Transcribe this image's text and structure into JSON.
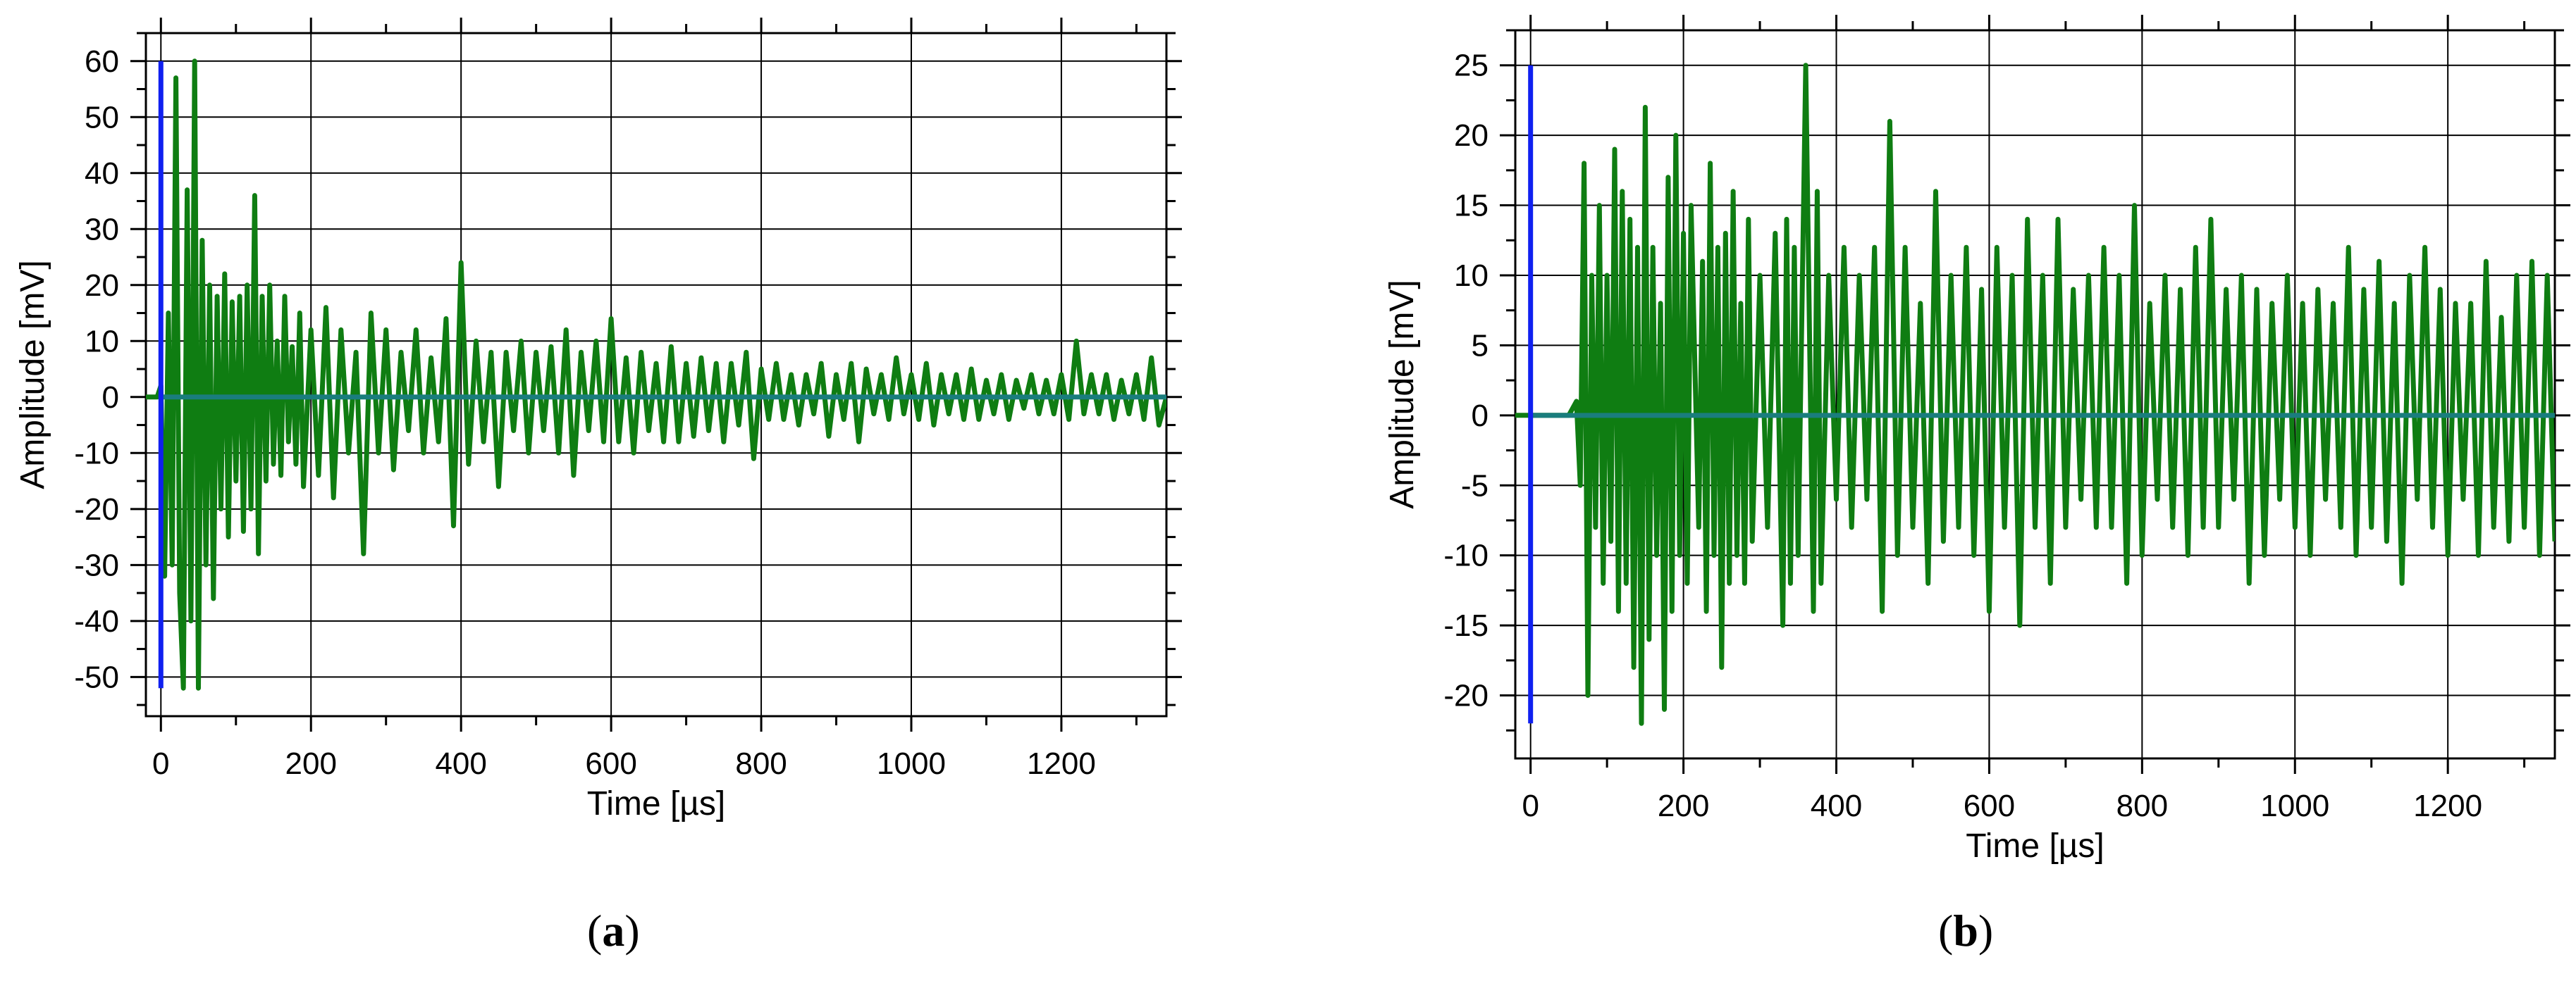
{
  "colors": {
    "signal": "#0f7d12",
    "trigger": "#1020f0",
    "baseline": "#1a7d7d",
    "grid": "#000000"
  },
  "chart_data": [
    {
      "type": "line",
      "label": "a",
      "xlabel": "Time [µs]",
      "ylabel": "Amplitude [mV]",
      "xlim": [
        -20,
        1340
      ],
      "ylim": [
        -57,
        65
      ],
      "xticks": [
        0,
        200,
        400,
        600,
        800,
        1000,
        1200
      ],
      "yticks": [
        -50,
        -40,
        -30,
        -20,
        -10,
        0,
        10,
        20,
        30,
        40,
        50,
        60
      ],
      "grid": true,
      "trigger_line": {
        "x": 0,
        "y_range": [
          -52,
          60
        ]
      },
      "baseline": {
        "y": 0,
        "x_range": [
          0,
          1340
        ]
      },
      "series": [
        {
          "x": [
            -20,
            -5,
            0,
            5,
            10,
            15,
            20,
            25,
            30,
            35,
            40,
            45,
            50,
            55,
            60,
            65,
            70,
            75,
            80,
            85,
            90,
            95,
            100,
            105,
            110,
            115,
            120,
            125,
            130,
            135,
            140,
            145,
            150,
            155,
            160,
            165,
            170,
            175,
            180,
            185,
            190,
            200,
            210,
            220,
            230,
            240,
            250,
            260,
            270,
            280,
            290,
            300,
            310,
            320,
            330,
            340,
            350,
            360,
            370,
            380,
            390,
            400,
            410,
            420,
            430,
            440,
            450,
            460,
            470,
            480,
            490,
            500,
            510,
            520,
            530,
            540,
            550,
            560,
            570,
            580,
            590,
            600,
            610,
            620,
            630,
            640,
            650,
            660,
            670,
            680,
            690,
            700,
            710,
            720,
            730,
            740,
            750,
            760,
            770,
            780,
            790,
            800,
            810,
            820,
            830,
            840,
            850,
            860,
            870,
            880,
            890,
            900,
            910,
            920,
            930,
            940,
            950,
            960,
            970,
            980,
            990,
            1000,
            1010,
            1020,
            1030,
            1040,
            1050,
            1060,
            1070,
            1080,
            1090,
            1100,
            1110,
            1120,
            1130,
            1140,
            1150,
            1160,
            1170,
            1180,
            1190,
            1200,
            1210,
            1220,
            1230,
            1240,
            1250,
            1260,
            1270,
            1280,
            1290,
            1300,
            1310,
            1320,
            1330,
            1340
          ],
          "y": [
            0,
            0,
            2,
            -32,
            15,
            -30,
            57,
            -35,
            -52,
            37,
            -40,
            60,
            -52,
            28,
            -30,
            20,
            -36,
            18,
            -20,
            22,
            -25,
            17,
            -15,
            18,
            -24,
            20,
            -20,
            36,
            -28,
            18,
            -15,
            20,
            -12,
            10,
            -14,
            18,
            -8,
            9,
            -12,
            15,
            -16,
            12,
            -14,
            16,
            -18,
            12,
            -10,
            8,
            -28,
            15,
            -10,
            12,
            -13,
            8,
            -6,
            12,
            -10,
            7,
            -8,
            14,
            -23,
            24,
            -12,
            10,
            -8,
            8,
            -16,
            8,
            -6,
            10,
            -10,
            8,
            -6,
            9,
            -10,
            12,
            -14,
            8,
            -6,
            10,
            -8,
            14,
            -8,
            7,
            -10,
            8,
            -6,
            6,
            -8,
            9,
            -8,
            6,
            -7,
            7,
            -6,
            6,
            -8,
            6,
            -5,
            8,
            -11,
            5,
            -4,
            6,
            -4,
            4,
            -5,
            4,
            -3,
            6,
            -7,
            4,
            -4,
            6,
            -8,
            5,
            -3,
            4,
            -4,
            7,
            -3,
            4,
            -4,
            6,
            -5,
            4,
            -3,
            4,
            -4,
            5,
            -4,
            3,
            -3,
            4,
            -4,
            3,
            -2,
            4,
            -3,
            3,
            -3,
            4,
            -4,
            10,
            -3,
            4,
            -3,
            4,
            -4,
            3,
            -3,
            4,
            -4,
            7,
            -5,
            0
          ]
        }
      ]
    },
    {
      "type": "line",
      "label": "b",
      "xlabel": "Time [µs]",
      "ylabel": "Amplitude [mV]",
      "xlim": [
        -20,
        1340
      ],
      "ylim": [
        -24.5,
        27.5
      ],
      "xticks": [
        0,
        200,
        400,
        600,
        800,
        1000,
        1200
      ],
      "yticks": [
        -20,
        -15,
        -10,
        -5,
        0,
        5,
        10,
        15,
        20,
        25
      ],
      "grid": true,
      "trigger_line": {
        "x": 0,
        "y_range": [
          -22,
          25
        ]
      },
      "baseline": {
        "y": 0,
        "x_range": [
          0,
          1340
        ]
      },
      "series": [
        {
          "x": [
            -20,
            0,
            20,
            40,
            50,
            60,
            65,
            70,
            75,
            80,
            85,
            90,
            95,
            100,
            105,
            110,
            115,
            120,
            125,
            130,
            135,
            140,
            145,
            150,
            155,
            160,
            165,
            170,
            175,
            180,
            185,
            190,
            195,
            200,
            205,
            210,
            220,
            225,
            230,
            235,
            240,
            245,
            250,
            255,
            260,
            265,
            270,
            275,
            280,
            285,
            290,
            300,
            310,
            320,
            330,
            335,
            340,
            345,
            350,
            360,
            370,
            375,
            380,
            390,
            400,
            410,
            420,
            430,
            440,
            450,
            460,
            470,
            480,
            490,
            500,
            510,
            520,
            530,
            540,
            550,
            560,
            570,
            580,
            590,
            600,
            610,
            620,
            630,
            640,
            650,
            660,
            670,
            680,
            690,
            700,
            710,
            720,
            730,
            740,
            750,
            760,
            770,
            780,
            790,
            800,
            810,
            820,
            830,
            840,
            850,
            860,
            870,
            880,
            890,
            900,
            910,
            920,
            930,
            940,
            950,
            960,
            970,
            980,
            990,
            1000,
            1010,
            1020,
            1030,
            1040,
            1050,
            1060,
            1070,
            1080,
            1090,
            1100,
            1110,
            1120,
            1130,
            1140,
            1150,
            1160,
            1170,
            1180,
            1190,
            1200,
            1210,
            1220,
            1230,
            1240,
            1250,
            1260,
            1270,
            1280,
            1290,
            1300,
            1310,
            1320,
            1330,
            1340
          ],
          "y": [
            0,
            0,
            0,
            0,
            0,
            1,
            -5,
            18,
            -20,
            10,
            -8,
            15,
            -12,
            10,
            -9,
            19,
            -14,
            16,
            -12,
            14,
            -18,
            12,
            -22,
            22,
            -16,
            12,
            -10,
            8,
            -21,
            17,
            -14,
            20,
            -10,
            13,
            -12,
            15,
            -8,
            11,
            -14,
            18,
            -10,
            12,
            -18,
            13,
            -12,
            16,
            -10,
            8,
            -12,
            14,
            -9,
            10,
            -8,
            13,
            -15,
            14,
            -12,
            12,
            -10,
            25,
            -14,
            16,
            -12,
            10,
            -6,
            12,
            -8,
            10,
            -6,
            12,
            -14,
            21,
            -10,
            12,
            -8,
            8,
            -12,
            16,
            -9,
            10,
            -8,
            12,
            -10,
            9,
            -14,
            12,
            -8,
            10,
            -15,
            14,
            -8,
            10,
            -12,
            14,
            -8,
            9,
            -6,
            10,
            -8,
            12,
            -8,
            10,
            -12,
            15,
            -10,
            8,
            -6,
            10,
            -8,
            9,
            -10,
            12,
            -8,
            14,
            -8,
            9,
            -6,
            10,
            -12,
            9,
            -10,
            8,
            -6,
            10,
            -8,
            8,
            -10,
            9,
            -6,
            8,
            -8,
            12,
            -10,
            9,
            -8,
            11,
            -9,
            8,
            -12,
            10,
            -6,
            12,
            -8,
            9,
            -10,
            8,
            -6,
            8,
            -10,
            11,
            -8,
            7,
            -9,
            10,
            -8,
            11,
            -10,
            10,
            -9
          ]
        }
      ]
    }
  ]
}
